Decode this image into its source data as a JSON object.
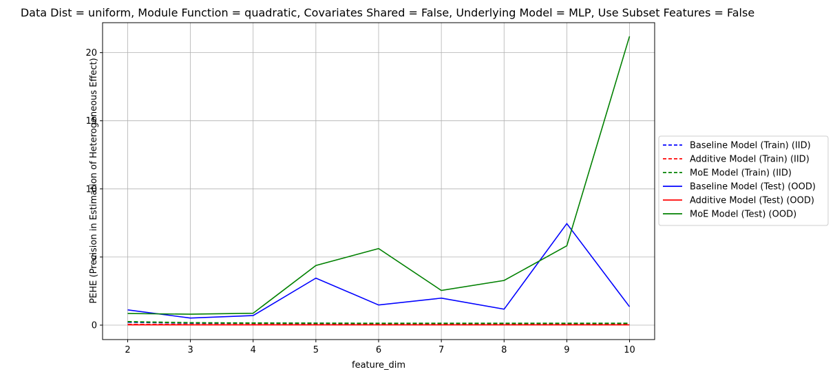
{
  "chart_data": {
    "type": "line",
    "title": "Data Dist = uniform, Module Function = quadratic, Covariates Shared = False, Underlying Model = MLP, Use Subset Features = False",
    "xlabel": "feature_dim",
    "ylabel": "PEHE (Precision in Estimation of Heterogeneous Effect)",
    "x": [
      2,
      3,
      4,
      5,
      6,
      7,
      8,
      9,
      10
    ],
    "xlim": [
      1.6,
      10.4
    ],
    "ylim": [
      -1.06,
      22.2
    ],
    "xticks": [
      "2",
      "3",
      "4",
      "5",
      "6",
      "7",
      "8",
      "9",
      "10"
    ],
    "yticks": [
      "0",
      "5",
      "10",
      "15",
      "20"
    ],
    "grid": true,
    "legend_position": "center-right, outside plot",
    "series": [
      {
        "name": "Baseline Model (Train) (IID)",
        "color": "#0000ff",
        "style": "dashed",
        "values": [
          0.22,
          0.15,
          0.14,
          0.13,
          0.12,
          0.12,
          0.12,
          0.12,
          0.12
        ]
      },
      {
        "name": "Additive Model (Train) (IID)",
        "color": "#ff0000",
        "style": "dashed",
        "values": [
          0.05,
          0.04,
          0.04,
          0.04,
          0.04,
          0.04,
          0.04,
          0.04,
          0.04
        ]
      },
      {
        "name": "MoE Model (Train) (IID)",
        "color": "#008000",
        "style": "dashed",
        "values": [
          0.25,
          0.17,
          0.15,
          0.14,
          0.13,
          0.13,
          0.13,
          0.13,
          0.13
        ]
      },
      {
        "name": "Baseline Model (Test) (OOD)",
        "color": "#0000ff",
        "style": "solid",
        "values": [
          1.12,
          0.52,
          0.7,
          3.45,
          1.48,
          1.98,
          1.17,
          7.45,
          1.35
        ]
      },
      {
        "name": "Additive Model (Test) (OOD)",
        "color": "#ff0000",
        "style": "solid",
        "values": [
          0.02,
          0.02,
          0.02,
          0.02,
          0.02,
          0.02,
          0.02,
          0.02,
          0.02
        ]
      },
      {
        "name": "MoE Model (Test) (OOD)",
        "color": "#008000",
        "style": "solid",
        "values": [
          0.85,
          0.8,
          0.87,
          4.38,
          5.62,
          2.55,
          3.28,
          5.82,
          21.2
        ]
      }
    ]
  }
}
